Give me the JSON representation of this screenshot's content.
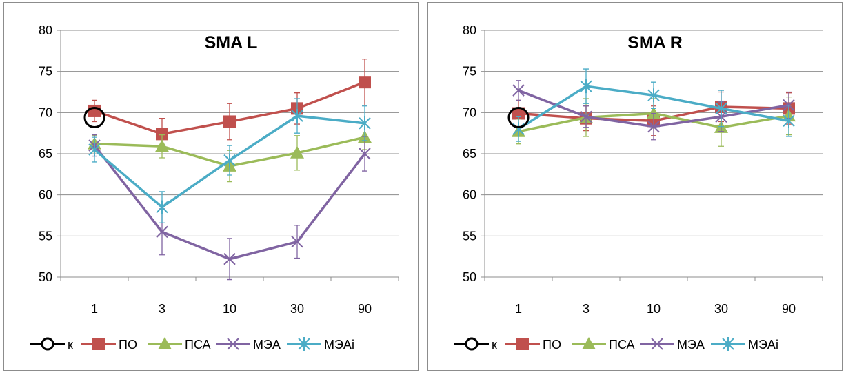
{
  "chart_data": [
    {
      "type": "line",
      "title": "SMA L",
      "categories": [
        "1",
        "3",
        "10",
        "30",
        "90"
      ],
      "ylim": [
        50,
        80
      ],
      "yticks": [
        50,
        55,
        60,
        65,
        70,
        75,
        80
      ],
      "grid": true,
      "legend_position": "bottom",
      "series": [
        {
          "name": "к",
          "color": "#000000",
          "marker": "open-circle",
          "values": [
            69.4,
            null,
            null,
            null,
            null
          ],
          "errors": [
            0,
            null,
            null,
            null,
            null
          ]
        },
        {
          "name": "ПО",
          "color": "#C0504D",
          "marker": "square",
          "values": [
            70.2,
            67.4,
            68.9,
            70.5,
            73.7
          ],
          "errors": [
            1.3,
            1.9,
            2.2,
            1.9,
            2.8
          ]
        },
        {
          "name": "ПСА",
          "color": "#9BBB59",
          "marker": "triangle",
          "values": [
            66.2,
            65.9,
            63.5,
            65.1,
            67.0
          ],
          "errors": [
            1.0,
            1.4,
            1.9,
            2.1,
            1.5
          ]
        },
        {
          "name": "МЭА",
          "color": "#8064A2",
          "marker": "x",
          "values": [
            66.0,
            55.5,
            52.2,
            54.3,
            65.0
          ],
          "errors": [
            1.3,
            2.8,
            2.5,
            2.0,
            2.1
          ]
        },
        {
          "name": "МЭАi",
          "color": "#4BACC6",
          "marker": "star",
          "values": [
            65.5,
            58.5,
            64.2,
            69.6,
            68.7
          ],
          "errors": [
            1.5,
            1.9,
            1.8,
            2.1,
            2.1
          ]
        }
      ]
    },
    {
      "type": "line",
      "title": "SMA R",
      "categories": [
        "1",
        "3",
        "10",
        "30",
        "90"
      ],
      "ylim": [
        50,
        80
      ],
      "yticks": [
        50,
        55,
        60,
        65,
        70,
        75,
        80
      ],
      "grid": true,
      "legend_position": "bottom",
      "series": [
        {
          "name": "к",
          "color": "#000000",
          "marker": "open-circle",
          "values": [
            69.4,
            null,
            null,
            null,
            null
          ],
          "errors": [
            0,
            null,
            null,
            null,
            null
          ]
        },
        {
          "name": "ПО",
          "color": "#C0504D",
          "marker": "square",
          "values": [
            69.9,
            69.3,
            69.0,
            70.7,
            70.5
          ],
          "errors": [
            1.6,
            1.5,
            1.8,
            1.8,
            1.9
          ]
        },
        {
          "name": "ПСА",
          "color": "#9BBB59",
          "marker": "triangle",
          "values": [
            67.7,
            69.4,
            69.9,
            68.2,
            69.6
          ],
          "errors": [
            1.5,
            2.3,
            1.8,
            2.3,
            2.3
          ]
        },
        {
          "name": "МЭА",
          "color": "#8064A2",
          "marker": "x",
          "values": [
            72.7,
            69.5,
            68.3,
            69.5,
            70.9
          ],
          "errors": [
            1.2,
            1.3,
            1.6,
            1.8,
            1.6
          ]
        },
        {
          "name": "МЭАi",
          "color": "#4BACC6",
          "marker": "star",
          "values": [
            68.0,
            73.2,
            72.1,
            70.5,
            69.0
          ],
          "errors": [
            1.5,
            2.1,
            1.6,
            2.2,
            1.9
          ]
        }
      ]
    }
  ]
}
